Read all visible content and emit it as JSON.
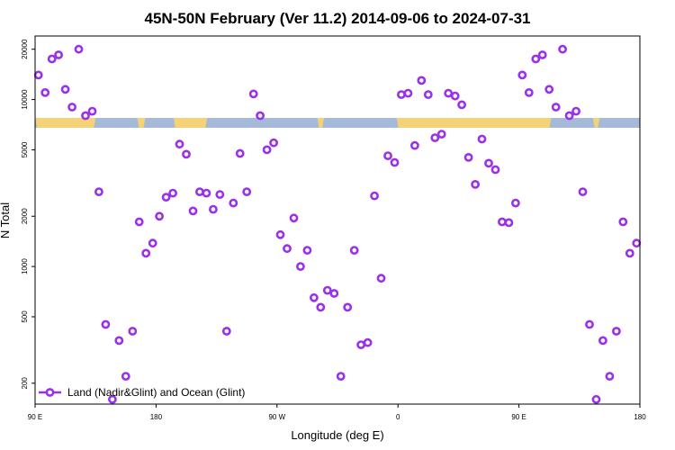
{
  "chart_data": {
    "type": "scatter",
    "title": "45N-50N February (Ver 11.2)   2014-09-06 to 2024-07-31",
    "xlabel": "Longitude (deg E)",
    "ylabel": "N Total",
    "x_ticks": [
      {
        "value": 90,
        "label": "90 E"
      },
      {
        "value": 180,
        "label": "180"
      },
      {
        "value": 270,
        "label": "90 W"
      },
      {
        "value": 360,
        "label": "0"
      },
      {
        "value": 450,
        "label": "90 E"
      },
      {
        "value": 540,
        "label": "180"
      }
    ],
    "y_scale": "log",
    "y_ticks": [
      200,
      500,
      1000,
      2000,
      5000,
      10000,
      20000
    ],
    "xlim": [
      90,
      540
    ],
    "ylim": [
      150,
      24000
    ],
    "grid": false,
    "legend_position": "bottom-left",
    "series": [
      {
        "name": "Land (Nadir&Glint) and Ocean (Glint)",
        "color": "#9b30e8",
        "points": [
          [
            92.5,
            14000
          ],
          [
            97.5,
            11000
          ],
          [
            102.5,
            17500
          ],
          [
            107.5,
            18500
          ],
          [
            112.5,
            11500
          ],
          [
            117.5,
            9000
          ],
          [
            122.5,
            20000
          ],
          [
            127.5,
            8000
          ],
          [
            132.5,
            8500
          ],
          [
            137.5,
            2800
          ],
          [
            142.5,
            450
          ],
          [
            147.5,
            160
          ],
          [
            152.5,
            360
          ],
          [
            157.5,
            220
          ],
          [
            162.5,
            410
          ],
          [
            167.5,
            1850
          ],
          [
            172.5,
            1200
          ],
          [
            177.5,
            1380
          ],
          [
            182.5,
            2000
          ],
          [
            187.5,
            2600
          ],
          [
            192.5,
            2750
          ],
          [
            197.5,
            5400
          ],
          [
            202.5,
            4700
          ],
          [
            207.5,
            2150
          ],
          [
            212.5,
            2800
          ],
          [
            217.5,
            2750
          ],
          [
            222.5,
            2200
          ],
          [
            227.5,
            2700
          ],
          [
            232.5,
            410
          ],
          [
            237.5,
            2400
          ],
          [
            242.5,
            4750
          ],
          [
            247.5,
            2800
          ],
          [
            252.5,
            10800
          ],
          [
            257.5,
            8000
          ],
          [
            262.5,
            5000
          ],
          [
            267.5,
            5500
          ],
          [
            272.5,
            1550
          ],
          [
            277.5,
            1280
          ],
          [
            282.5,
            1950
          ],
          [
            287.5,
            1000
          ],
          [
            292.5,
            1250
          ],
          [
            297.5,
            650
          ],
          [
            302.5,
            570
          ],
          [
            307.5,
            720
          ],
          [
            312.5,
            690
          ],
          [
            317.5,
            220
          ],
          [
            322.5,
            570
          ],
          [
            327.5,
            1250
          ],
          [
            332.5,
            340
          ],
          [
            337.5,
            350
          ],
          [
            342.5,
            2650
          ],
          [
            347.5,
            850
          ],
          [
            352.5,
            4600
          ],
          [
            357.5,
            4200
          ],
          [
            362.5,
            10700
          ],
          [
            367.5,
            10900
          ],
          [
            372.5,
            5300
          ],
          [
            377.5,
            13000
          ],
          [
            382.5,
            10700
          ],
          [
            387.5,
            5900
          ],
          [
            392.5,
            6200
          ],
          [
            397.5,
            10900
          ],
          [
            402.5,
            10500
          ],
          [
            407.5,
            9300
          ],
          [
            412.5,
            4500
          ],
          [
            417.5,
            3100
          ],
          [
            422.5,
            5800
          ],
          [
            427.5,
            4150
          ],
          [
            432.5,
            3800
          ],
          [
            437.5,
            1850
          ],
          [
            442.5,
            1830
          ],
          [
            447.5,
            2400
          ],
          [
            452.5,
            14000
          ],
          [
            457.5,
            11000
          ],
          [
            462.5,
            17500
          ],
          [
            467.5,
            18500
          ],
          [
            472.5,
            11500
          ],
          [
            477.5,
            9000
          ],
          [
            482.5,
            20000
          ],
          [
            487.5,
            8000
          ],
          [
            492.5,
            8500
          ],
          [
            497.5,
            2800
          ],
          [
            502.5,
            450
          ],
          [
            507.5,
            160
          ],
          [
            512.5,
            360
          ],
          [
            517.5,
            220
          ],
          [
            522.5,
            410
          ],
          [
            527.5,
            1850
          ],
          [
            532.5,
            1200
          ],
          [
            537.5,
            1380
          ]
        ]
      }
    ],
    "land_mask_colors": {
      "land": "#f5d276",
      "ocean": "#a5b9d8"
    }
  }
}
